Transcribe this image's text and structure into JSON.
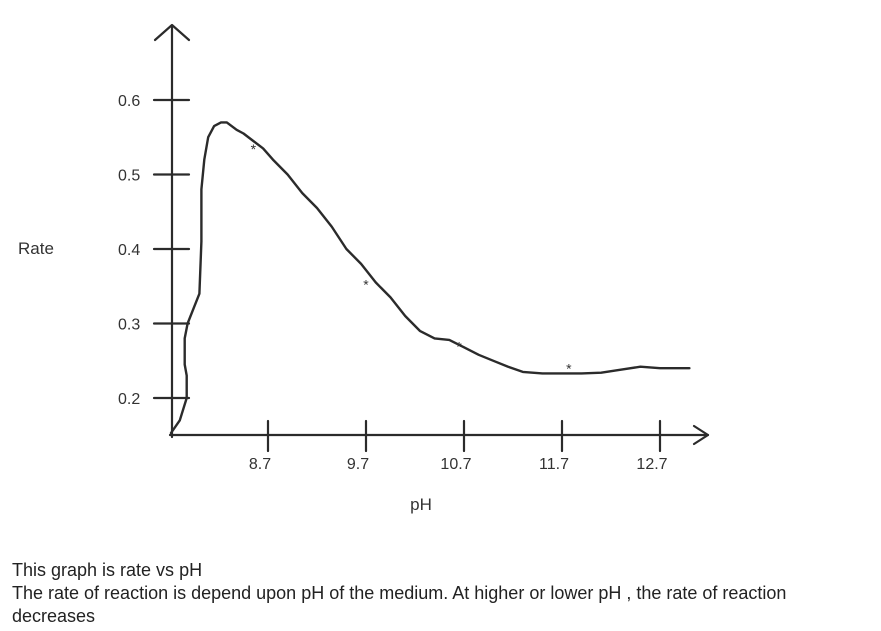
{
  "chart_data": {
    "type": "line",
    "ylabel": "Rate",
    "xlabel": "pH",
    "x_ticks": [
      "8.7",
      "9.7",
      "10.7",
      "11.7",
      "12.7"
    ],
    "y_ticks": [
      "0.6",
      "0.5",
      "0.4",
      "0.3",
      "0.2"
    ],
    "xlim": [
      7.7,
      13.2
    ],
    "ylim": [
      0.15,
      0.6
    ],
    "grid": false,
    "series": [
      {
        "x": [
          7.71,
          7.8,
          7.87,
          7.87,
          7.85,
          7.85,
          7.88,
          7.94,
          8.0,
          8.02,
          8.02,
          8.05,
          8.09,
          8.15,
          8.22,
          8.28,
          8.38,
          8.45,
          8.55,
          8.65,
          8.75,
          8.9,
          9.05,
          9.2,
          9.35,
          9.5,
          9.65,
          9.8,
          9.95,
          10.1,
          10.25,
          10.4,
          10.55,
          10.7,
          10.85,
          11.0,
          11.15,
          11.3,
          11.5,
          11.7,
          11.9,
          12.1,
          12.3,
          12.5,
          12.7,
          12.9,
          13.0
        ],
        "y": [
          0.153,
          0.17,
          0.2,
          0.23,
          0.245,
          0.28,
          0.3,
          0.32,
          0.34,
          0.41,
          0.48,
          0.52,
          0.55,
          0.565,
          0.57,
          0.57,
          0.56,
          0.555,
          0.545,
          0.535,
          0.52,
          0.5,
          0.475,
          0.455,
          0.43,
          0.4,
          0.38,
          0.355,
          0.335,
          0.31,
          0.29,
          0.28,
          0.278,
          0.268,
          0.258,
          0.25,
          0.242,
          0.235,
          0.233,
          0.233,
          0.233,
          0.234,
          0.238,
          0.242,
          0.24,
          0.24,
          0.24
        ]
      }
    ],
    "markers": [
      {
        "x": 8.55,
        "y": 0.537
      },
      {
        "x": 9.7,
        "y": 0.355
      },
      {
        "x": 10.65,
        "y": 0.272
      },
      {
        "x": 11.77,
        "y": 0.242
      }
    ]
  },
  "caption": {
    "line1": "This graph is rate vs pH",
    "line2": "The rate of reaction is depend upon pH of the medium. At higher or lower pH , the rate of reaction decreases"
  }
}
